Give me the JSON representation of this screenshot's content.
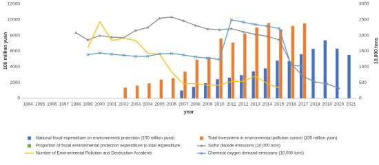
{
  "chart_data": {
    "type": "bar",
    "x_label": "year",
    "y_label": "100 million yuan",
    "y2_label": "10,000 tons",
    "categories": [
      "1994",
      "1995",
      "1996",
      "1997",
      "1998",
      "1999",
      "2000",
      "2001",
      "2002",
      "2003",
      "2004",
      "2005",
      "2006",
      "2007",
      "2008",
      "2009",
      "2010",
      "2011",
      "2012",
      "2013",
      "2014",
      "2015",
      "2016",
      "2017",
      "2018",
      "2019",
      "2020",
      "2021"
    ],
    "ylim": [
      0,
      12000
    ],
    "yticks": [
      0,
      2000,
      4000,
      6000,
      8000,
      10000,
      12000
    ],
    "y2lim": [
      0,
      3000
    ],
    "y2ticks": [
      0,
      500,
      1000,
      1500,
      2000,
      2500,
      3000
    ],
    "grid": false,
    "series": [
      {
        "name": "National fiscal expenditure on environmental protection (100 million yuan)",
        "type": "bar",
        "color": "#4472c4",
        "values": [
          null,
          null,
          null,
          null,
          null,
          null,
          null,
          null,
          null,
          null,
          null,
          null,
          null,
          1000,
          1450,
          1930,
          2440,
          2640,
          2960,
          3440,
          3810,
          4800,
          4730,
          5620,
          6300,
          7390,
          6330,
          5530
        ]
      },
      {
        "name": "Total investment in environmental pollution control (100 million yuan)",
        "type": "bar",
        "color": "#ed7d31",
        "values": [
          null,
          null,
          null,
          null,
          null,
          null,
          null,
          null,
          1370,
          1620,
          1910,
          2390,
          2570,
          3390,
          4940,
          5260,
          7610,
          7110,
          8250,
          9040,
          9580,
          8810,
          9220,
          9540,
          null,
          null,
          null,
          null
        ]
      },
      {
        "name": "Proportion of fiscal environmental protection expenditure to total expenditure",
        "type": "bar",
        "color": "#70ad47",
        "values": [
          null,
          null,
          null,
          null,
          null,
          null,
          null,
          null,
          null,
          null,
          null,
          null,
          null,
          null,
          null,
          null,
          null,
          null,
          null,
          null,
          null,
          null,
          null,
          null,
          null,
          null,
          null,
          null
        ]
      },
      {
        "name": "Sulfur dioxide emissions (10,000 tons)",
        "type": "line",
        "axis": "y2",
        "color": "#8c8c8c",
        "marker": "triangle",
        "values": [
          null,
          null,
          null,
          null,
          2090,
          1860,
          1995,
          1950,
          1930,
          2160,
          2255,
          2550,
          2590,
          2470,
          2320,
          2210,
          2185,
          2220,
          2120,
          2040,
          1975,
          1860,
          1100,
          700,
          520,
          460,
          320,
          null
        ]
      },
      {
        "name": "Number of Environmental Pollution and Destruction Accidents",
        "type": "line",
        "axis": "y2",
        "color": "#ffc000",
        "marker": "none",
        "values": [
          null,
          null,
          null,
          null,
          null,
          1610,
          2440,
          1840,
          1920,
          1840,
          1440,
          1410,
          840,
          460,
          470,
          420,
          420,
          540,
          540,
          710,
          470,
          330,
          null,
          null,
          null,
          null,
          null,
          null
        ]
      },
      {
        "name": "Chemical oxygen demand emissions (10,000 tons)",
        "type": "line",
        "axis": "y2",
        "color": "#5b9bd5",
        "marker": "cross",
        "values": [
          null,
          null,
          null,
          null,
          null,
          1390,
          1445,
          1405,
          1370,
          1335,
          1340,
          1415,
          1430,
          1380,
          1320,
          1280,
          1240,
          2500,
          2425,
          2350,
          2295,
          2225,
          1050,
          1020,
          null,
          null,
          null,
          null
        ]
      }
    ]
  }
}
